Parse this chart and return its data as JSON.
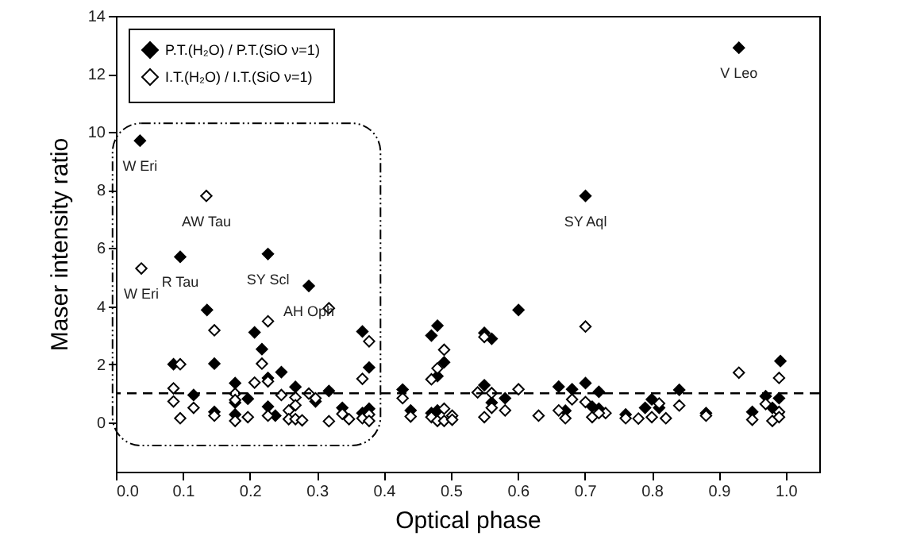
{
  "chart_data": {
    "type": "scatter",
    "xlabel": "Optical phase",
    "ylabel": "Maser intensity ratio",
    "xlim": [
      0,
      1.05
    ],
    "xticks": [
      {
        "value": 0,
        "label": "0.0"
      },
      0.1,
      0.2,
      0.3,
      0.4,
      0.5,
      0.6,
      0.7,
      0.8,
      0.9,
      {
        "value": 1,
        "label": "1.0"
      }
    ],
    "ylim": [
      -1.7,
      14
    ],
    "yticks": [
      0,
      2,
      4,
      6,
      8,
      10,
      12,
      14
    ],
    "grid": false,
    "legend": "top left",
    "marker": "diamond",
    "ref_lines": [
      {
        "axis": "y",
        "value": 1,
        "line_style": "dashed",
        "color": "#000000"
      }
    ],
    "annotations": [
      {
        "text": "W Eri",
        "x": 0.036,
        "y": 9.7
      },
      {
        "text": "W Eri",
        "x": 0.038,
        "y": 5.3
      },
      {
        "text": "R Tau",
        "x": 0.096,
        "y": 5.7
      },
      {
        "text": "AW Tau",
        "x": 0.135,
        "y": 7.8
      },
      {
        "text": "SY Scl",
        "x": 0.227,
        "y": 5.8
      },
      {
        "text": "AH Oph",
        "x": 0.288,
        "y": 4.7
      },
      {
        "text": "SY Aql",
        "x": 0.701,
        "y": 7.8
      },
      {
        "text": "V Leo",
        "x": 0.93,
        "y": 12.9
      }
    ],
    "series": [
      {
        "name": "P.T.(H₂O) / P.T.(SiO ν=1)",
        "color": "#000000",
        "x": [
          0.036,
          0.096,
          0.086,
          0.116,
          0.136,
          0.147,
          0.147,
          0.178,
          0.178,
          0.178,
          0.197,
          0.207,
          0.218,
          0.227,
          0.227,
          0.227,
          0.238,
          0.247,
          0.268,
          0.288,
          0.298,
          0.318,
          0.338,
          0.368,
          0.368,
          0.378,
          0.378,
          0.428,
          0.44,
          0.471,
          0.48,
          0.48,
          0.49,
          0.471,
          0.48,
          0.55,
          0.561,
          0.55,
          0.561,
          0.581,
          0.601,
          0.661,
          0.671,
          0.681,
          0.701,
          0.721,
          0.711,
          0.721,
          0.761,
          0.79,
          0.8,
          0.811,
          0.841,
          0.881,
          0.95,
          0.97,
          0.98,
          0.99,
          0.992,
          0.701,
          0.93
        ],
        "values": [
          9.7,
          5.7,
          2.0,
          0.94,
          3.87,
          2.02,
          0.36,
          1.35,
          0.68,
          0.27,
          0.81,
          3.1,
          2.52,
          5.8,
          1.53,
          0.54,
          0.23,
          1.73,
          1.22,
          4.7,
          0.72,
          1.08,
          0.5,
          3.13,
          0.32,
          1.89,
          0.47,
          1.13,
          0.41,
          2.99,
          3.33,
          1.59,
          2.07,
          0.32,
          0.41,
          3.08,
          2.88,
          1.28,
          0.68,
          0.83,
          3.87,
          1.23,
          0.4,
          1.14,
          1.35,
          1.05,
          0.54,
          0.47,
          0.27,
          0.5,
          0.79,
          0.5,
          1.12,
          0.32,
          0.36,
          0.9,
          0.5,
          0.83,
          2.11,
          7.8,
          12.9
        ]
      },
      {
        "name": "I.T.(H₂O) / I.T.(SiO ν=1)",
        "color": "#000000",
        "x": [
          0.038,
          0.135,
          0.086,
          0.086,
          0.096,
          0.096,
          0.116,
          0.147,
          0.147,
          0.178,
          0.178,
          0.178,
          0.197,
          0.207,
          0.218,
          0.227,
          0.227,
          0.227,
          0.247,
          0.258,
          0.268,
          0.268,
          0.258,
          0.268,
          0.278,
          0.288,
          0.298,
          0.318,
          0.318,
          0.338,
          0.348,
          0.368,
          0.378,
          0.368,
          0.378,
          0.378,
          0.428,
          0.44,
          0.471,
          0.48,
          0.49,
          0.471,
          0.48,
          0.49,
          0.49,
          0.502,
          0.502,
          0.54,
          0.55,
          0.55,
          0.561,
          0.561,
          0.581,
          0.601,
          0.631,
          0.661,
          0.671,
          0.681,
          0.701,
          0.701,
          0.711,
          0.731,
          0.721,
          0.761,
          0.78,
          0.8,
          0.811,
          0.821,
          0.841,
          0.881,
          0.93,
          0.95,
          0.97,
          0.98,
          0.99,
          0.99,
          0.99
        ],
        "values": [
          5.3,
          7.8,
          1.17,
          0.72,
          2.0,
          0.14,
          0.5,
          3.17,
          0.23,
          0.99,
          0.77,
          0.05,
          0.18,
          1.37,
          2.02,
          3.48,
          1.41,
          0.23,
          0.94,
          0.41,
          0.86,
          0.59,
          0.11,
          0.11,
          0.07,
          0.99,
          0.83,
          3.93,
          0.04,
          0.29,
          0.11,
          1.5,
          2.79,
          0.14,
          0.27,
          0.05,
          0.83,
          0.2,
          1.48,
          1.86,
          2.5,
          0.18,
          0.05,
          0.47,
          0.05,
          0.23,
          0.09,
          1.03,
          2.94,
          0.18,
          1.01,
          0.5,
          0.41,
          1.14,
          0.23,
          0.41,
          0.14,
          0.79,
          3.3,
          0.7,
          0.18,
          0.32,
          0.32,
          0.14,
          0.13,
          0.18,
          0.65,
          0.14,
          0.58,
          0.23,
          1.71,
          0.09,
          0.63,
          0.05,
          1.53,
          0.36,
          0.18
        ]
      }
    ]
  }
}
